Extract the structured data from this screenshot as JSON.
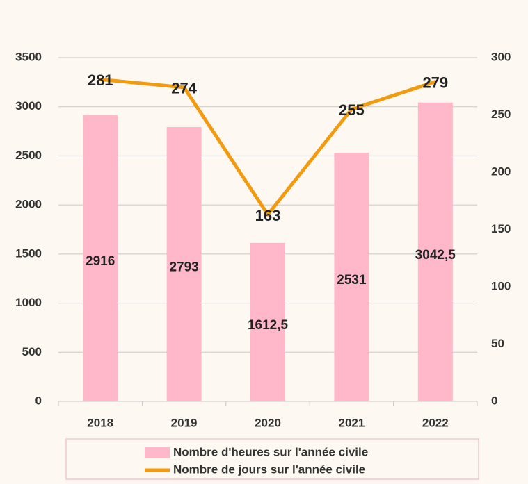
{
  "chart_data": {
    "type": "bar_line",
    "categories": [
      "2018",
      "2019",
      "2020",
      "2021",
      "2022"
    ],
    "series": [
      {
        "name": "Nombre d'heures sur l'année civile",
        "type": "bar",
        "color": "#ffb8c9",
        "values": [
          2916,
          2793,
          1612.5,
          2531,
          3042.5
        ],
        "value_labels": [
          "2916",
          "2793",
          "1612,5",
          "2531",
          "3042,5"
        ]
      },
      {
        "name": "Nombre de jours sur l'année civile",
        "type": "line",
        "color": "#f29b10",
        "axis": "y2",
        "values": [
          281,
          274,
          163,
          255,
          279
        ]
      }
    ],
    "ylim": [
      0,
      3500
    ],
    "yticks": [
      0,
      500,
      1000,
      1500,
      2000,
      2500,
      3000,
      3500
    ],
    "y2lim": [
      0,
      300
    ],
    "y2ticks": [
      0,
      50,
      100,
      150,
      200,
      250,
      300
    ],
    "grid": true,
    "legend": "bottom"
  }
}
